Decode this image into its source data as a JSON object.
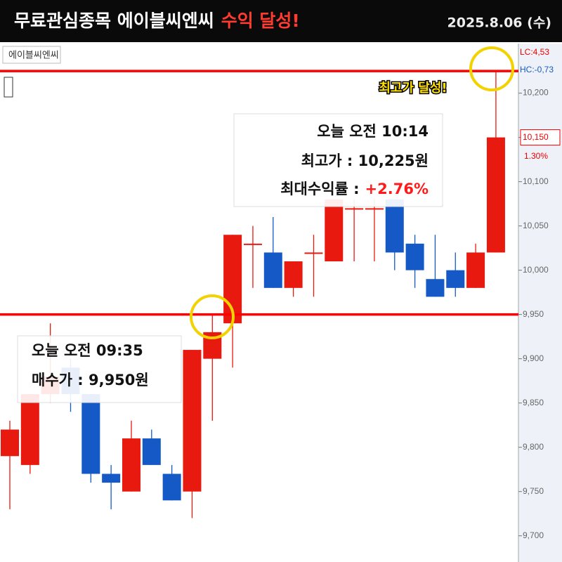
{
  "header": {
    "title": "무료관심종목 에이블씨엔씨",
    "highlight": "수익 달성!",
    "date": "2025.8.06 (수)"
  },
  "chart_data": {
    "type": "candlestick",
    "title": "에이블씨엔씨",
    "up_color": "#e8190f",
    "down_color": "#1559c6",
    "candles": [
      {
        "open": 9790,
        "high": 9830,
        "low": 9730,
        "close": 9820
      },
      {
        "open": 9780,
        "high": 9860,
        "low": 9770,
        "close": 9860
      },
      {
        "open": 9860,
        "high": 9940,
        "low": 9850,
        "close": 9880
      },
      {
        "open": 9890,
        "high": 9900,
        "low": 9840,
        "close": 9860
      },
      {
        "open": 9860,
        "high": 9860,
        "low": 9760,
        "close": 9770
      },
      {
        "open": 9770,
        "high": 9780,
        "low": 9730,
        "close": 9760
      },
      {
        "open": 9750,
        "high": 9830,
        "low": 9750,
        "close": 9810
      },
      {
        "open": 9810,
        "high": 9820,
        "low": 9780,
        "close": 9780
      },
      {
        "open": 9770,
        "high": 9780,
        "low": 9740,
        "close": 9740
      },
      {
        "open": 9750,
        "high": 9910,
        "low": 9720,
        "close": 9910
      },
      {
        "open": 9900,
        "high": 9950,
        "low": 9830,
        "close": 9930
      },
      {
        "open": 9940,
        "high": 10040,
        "low": 9890,
        "close": 10040
      },
      {
        "open": 10030,
        "high": 10050,
        "low": 9980,
        "close": 10030
      },
      {
        "open": 10020,
        "high": 10060,
        "low": 9980,
        "close": 9980
      },
      {
        "open": 9980,
        "high": 10010,
        "low": 9970,
        "close": 10010
      },
      {
        "open": 10020,
        "high": 10040,
        "low": 9970,
        "close": 10020
      },
      {
        "open": 10010,
        "high": 10080,
        "low": 10010,
        "close": 10080
      },
      {
        "open": 10070,
        "high": 10080,
        "low": 10010,
        "close": 10070
      },
      {
        "open": 10070,
        "high": 10080,
        "low": 10010,
        "close": 10070
      },
      {
        "open": 10080,
        "high": 10080,
        "low": 10000,
        "close": 10020
      },
      {
        "open": 10030,
        "high": 10040,
        "low": 9980,
        "close": 10000
      },
      {
        "open": 9990,
        "high": 10040,
        "low": 9970,
        "close": 9970
      },
      {
        "open": 10000,
        "high": 10020,
        "low": 9970,
        "close": 9980
      },
      {
        "open": 9980,
        "high": 10030,
        "low": 9980,
        "close": 10020
      },
      {
        "open": 10020,
        "high": 10225,
        "low": 10020,
        "close": 10150
      }
    ],
    "ylim": [
      9672,
      10256
    ],
    "yticks": [
      {
        "value": 9700,
        "label": "9,700"
      },
      {
        "value": 9750,
        "label": "9,750"
      },
      {
        "value": 9800,
        "label": "9,800"
      },
      {
        "value": 9850,
        "label": "9,850"
      },
      {
        "value": 9900,
        "label": "9,900"
      },
      {
        "value": 9950,
        "label": "9,950"
      },
      {
        "value": 10000,
        "label": "10,000"
      },
      {
        "value": 10050,
        "label": "10,050"
      },
      {
        "value": 10100,
        "label": "10,100"
      },
      {
        "value": 10150,
        "label": "10,150"
      },
      {
        "value": 10200,
        "label": "10,200"
      }
    ],
    "hlines": [
      {
        "value": 10225,
        "color": "#ff0000"
      },
      {
        "value": 9950,
        "color": "#ff0000"
      }
    ],
    "axis_notes": {
      "lc": "LC:4,53",
      "hc": "HC:-0,73",
      "last": {
        "value": 10150,
        "label": "10,150"
      },
      "change": "1.30%"
    },
    "annotations": {
      "peak": "최고가 달성!",
      "buy": [
        "오늘 오전 09:35",
        "매수가 : 9,950원"
      ],
      "high": [
        "오늘 오전 10:14",
        "최고가 : 10,225원"
      ],
      "return_label": "최대수익률 :",
      "return_value": "+2.76%"
    }
  }
}
